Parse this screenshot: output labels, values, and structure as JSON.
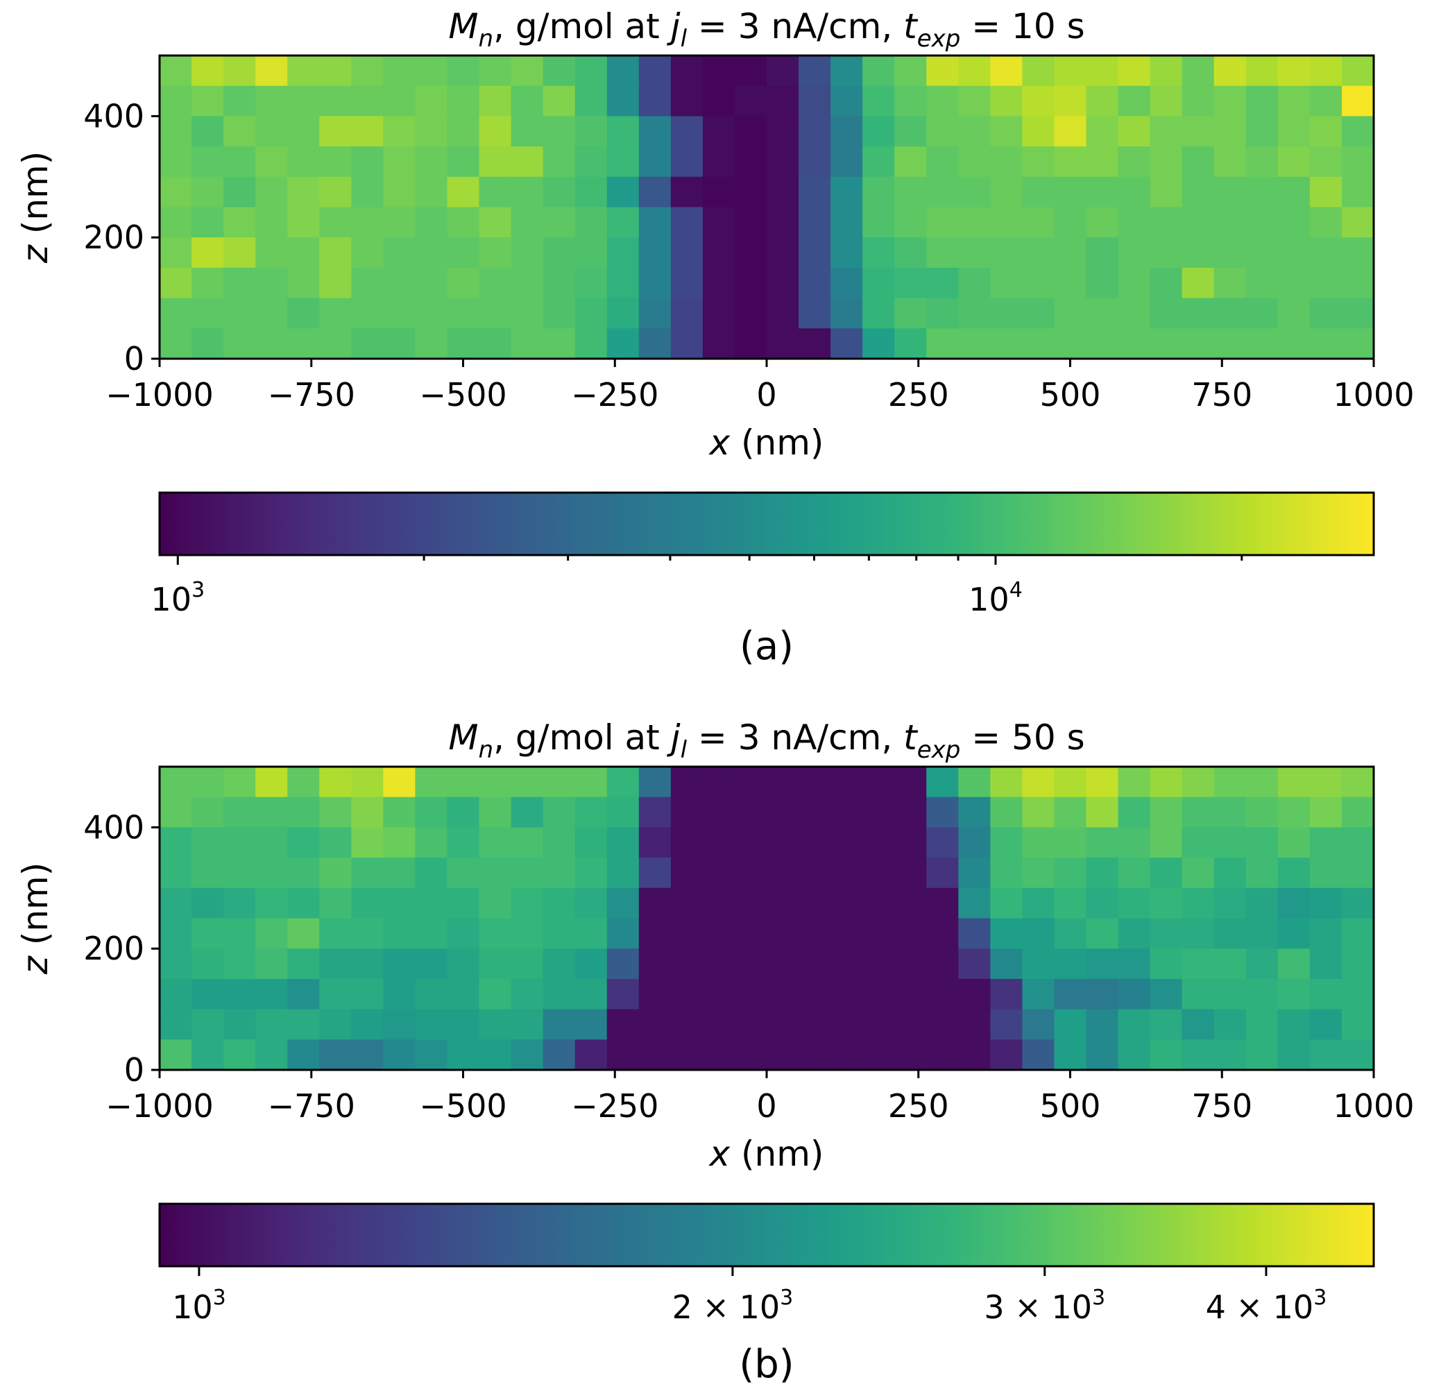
{
  "chart_data": [
    {
      "type": "heatmap",
      "title_parts": [
        "M",
        "n",
        ", g/mol at ",
        "j",
        "l",
        " = 3 nA/cm, ",
        "t",
        "exp",
        " = 10 s"
      ],
      "title": "M_n, g/mol at j_l = 3 nA/cm, t_exp = 10 s",
      "xlabel_var": "x",
      "xlabel_unit": " (nm)",
      "ylabel_var": "z",
      "ylabel_unit": " (nm)",
      "xlim": [
        -1000,
        1000
      ],
      "ylim": [
        0,
        500
      ],
      "xticks": [
        -1000,
        -750,
        -500,
        -250,
        0,
        250,
        500,
        750,
        1000
      ],
      "xtick_labels": [
        "−1000",
        "−750",
        "−500",
        "−250",
        "0",
        "250",
        "500",
        "750",
        "1000"
      ],
      "yticks": [
        0,
        200,
        400
      ],
      "ytick_labels": [
        "0",
        "200",
        "400"
      ],
      "colorbar": {
        "scale": "log",
        "vmin": 950,
        "vmax": 29000,
        "major_ticks": [
          1000,
          10000
        ],
        "major_labels": [
          [
            "10",
            "3"
          ],
          [
            "10",
            "4"
          ]
        ],
        "minor_ticks": [
          2000,
          3000,
          4000,
          5000,
          6000,
          7000,
          8000,
          9000,
          20000
        ]
      },
      "panel_label": "(a)",
      "grid_rows_top_to_bottom": [
        [
          14000,
          20000,
          18000,
          24000,
          16000,
          16000,
          14000,
          13000,
          13000,
          12000,
          13000,
          14000,
          11000,
          10000,
          5000,
          2000,
          1050,
          1000,
          1000,
          1100,
          2200,
          5000,
          11000,
          13000,
          22000,
          20000,
          26000,
          17000,
          19000,
          19000,
          21000,
          17000,
          13000,
          22000,
          19000,
          21000,
          20000,
          17000
        ],
        [
          13000,
          14000,
          12000,
          13000,
          13000,
          13000,
          13000,
          13000,
          14000,
          13000,
          16000,
          12000,
          15000,
          10000,
          5000,
          2000,
          1050,
          1000,
          1050,
          1050,
          2100,
          4600,
          10000,
          12000,
          13000,
          14000,
          17000,
          20000,
          21000,
          16000,
          13000,
          16000,
          13000,
          14000,
          12000,
          14000,
          13000,
          28000
        ],
        [
          13000,
          11000,
          14000,
          13000,
          13000,
          18000,
          18000,
          15000,
          14000,
          13000,
          18000,
          12000,
          12000,
          11000,
          9500,
          4300,
          2000,
          1050,
          1000,
          1050,
          2100,
          4000,
          9000,
          11000,
          13000,
          13000,
          14000,
          19000,
          24000,
          15000,
          17000,
          14000,
          14000,
          14000,
          12000,
          14000,
          15000,
          12000
        ],
        [
          13000,
          12000,
          12000,
          14000,
          13000,
          13000,
          12000,
          14000,
          13000,
          12000,
          17000,
          17000,
          12000,
          10500,
          9500,
          4300,
          2000,
          1050,
          1000,
          1050,
          2100,
          4000,
          10000,
          14000,
          12000,
          13000,
          13000,
          14000,
          15000,
          15000,
          13000,
          14000,
          12000,
          14000,
          13000,
          15000,
          14000,
          13000
        ],
        [
          14000,
          13000,
          11000,
          13000,
          15000,
          16000,
          12000,
          14000,
          13000,
          18000,
          12000,
          12000,
          11000,
          10000,
          6000,
          2400,
          1050,
          1000,
          1000,
          1050,
          2200,
          5000,
          11000,
          12000,
          12000,
          12000,
          13000,
          12000,
          12000,
          12000,
          12000,
          14000,
          12000,
          12000,
          12000,
          12000,
          17000,
          13000
        ],
        [
          13000,
          12000,
          14000,
          13000,
          15000,
          13000,
          13000,
          13000,
          12000,
          13000,
          15000,
          12000,
          12000,
          11000,
          9500,
          4300,
          2000,
          1050,
          1000,
          1050,
          2200,
          5000,
          11000,
          12000,
          13000,
          13000,
          13000,
          13000,
          12000,
          13000,
          12000,
          12000,
          12000,
          12000,
          12000,
          12000,
          13000,
          16000
        ],
        [
          14000,
          20000,
          18000,
          13000,
          13000,
          16000,
          13000,
          12000,
          12000,
          12000,
          13000,
          12000,
          11000,
          11000,
          8500,
          4300,
          2000,
          1050,
          1000,
          1050,
          2200,
          5000,
          9500,
          10500,
          12000,
          12000,
          12000,
          12000,
          12000,
          11000,
          12000,
          12000,
          12000,
          12000,
          12000,
          12000,
          12000,
          12000
        ],
        [
          16000,
          13000,
          12000,
          12000,
          13000,
          16000,
          12000,
          12000,
          12000,
          13000,
          12000,
          12000,
          11000,
          10500,
          8500,
          4300,
          2000,
          1050,
          1000,
          1050,
          2200,
          4300,
          9000,
          9500,
          9500,
          11000,
          12000,
          12000,
          12000,
          11000,
          12000,
          11000,
          17000,
          13000,
          12000,
          12000,
          12000,
          12000
        ],
        [
          12000,
          12000,
          12000,
          12000,
          11000,
          12000,
          12000,
          12000,
          12000,
          12000,
          12000,
          12000,
          11000,
          10000,
          8000,
          4000,
          1900,
          1050,
          1000,
          1050,
          2200,
          4000,
          9000,
          11000,
          10500,
          11000,
          11000,
          11000,
          12000,
          12000,
          12000,
          11000,
          11000,
          11000,
          11000,
          12000,
          11000,
          11000
        ],
        [
          12000,
          11000,
          12000,
          12000,
          12000,
          12000,
          11000,
          11000,
          12000,
          11000,
          11000,
          12000,
          12000,
          10000,
          6500,
          3300,
          1900,
          1050,
          1000,
          1050,
          1050,
          2200,
          6500,
          9000,
          12000,
          12000,
          12000,
          12000,
          12000,
          12000,
          12000,
          12000,
          12000,
          12000,
          12000,
          12000,
          12000,
          12000
        ]
      ]
    },
    {
      "type": "heatmap",
      "title_parts": [
        "M",
        "n",
        ", g/mol at ",
        "j",
        "l",
        " = 3 nA/cm, ",
        "t",
        "exp",
        " = 50 s"
      ],
      "title": "M_n, g/mol at j_l = 3 nA/cm, t_exp = 50 s",
      "xlabel_var": "x",
      "xlabel_unit": " (nm)",
      "ylabel_var": "z",
      "ylabel_unit": " (nm)",
      "xlim": [
        -1000,
        1000
      ],
      "ylim": [
        0,
        500
      ],
      "xticks": [
        -1000,
        -750,
        -500,
        -250,
        0,
        250,
        500,
        750,
        1000
      ],
      "xtick_labels": [
        "−1000",
        "−750",
        "−500",
        "−250",
        "0",
        "250",
        "500",
        "750",
        "1000"
      ],
      "yticks": [
        0,
        200,
        400
      ],
      "ytick_labels": [
        "0",
        "200",
        "400"
      ],
      "colorbar": {
        "scale": "log",
        "vmin": 950,
        "vmax": 4600,
        "major_ticks": [
          1000,
          2000,
          3000,
          4000
        ],
        "major_labels": [
          [
            "10",
            "3"
          ],
          [
            "2 × 10",
            "3"
          ],
          [
            "3 × 10",
            "3"
          ],
          [
            "4 × 10",
            "3"
          ]
        ],
        "minor_ticks": []
      },
      "panel_label": "(b)",
      "grid_rows_top_to_bottom": [
        [
          3100,
          3100,
          3200,
          3900,
          3100,
          3800,
          3700,
          4400,
          3100,
          3100,
          3100,
          3100,
          3100,
          3100,
          2700,
          1700,
          1000,
          1000,
          1000,
          1000,
          1000,
          1000,
          1000,
          1000,
          2300,
          3000,
          3600,
          4000,
          3800,
          4000,
          3300,
          3600,
          3400,
          3200,
          3200,
          3500,
          3500,
          3400
        ],
        [
          3100,
          3000,
          2900,
          2900,
          2900,
          3100,
          3400,
          3000,
          2800,
          2600,
          3000,
          2500,
          2800,
          2700,
          2600,
          1200,
          1000,
          1000,
          1000,
          1000,
          1000,
          1000,
          1000,
          1000,
          1500,
          2000,
          3000,
          3400,
          3100,
          3600,
          2800,
          3100,
          2900,
          2900,
          3000,
          3100,
          3300,
          3000
        ],
        [
          2700,
          2800,
          2800,
          2800,
          2700,
          2800,
          3300,
          3200,
          2900,
          2700,
          2900,
          2900,
          2800,
          2600,
          2400,
          1100,
          1000,
          1000,
          1000,
          1000,
          1000,
          1000,
          1000,
          1000,
          1300,
          1900,
          2800,
          3000,
          3000,
          2900,
          2900,
          3100,
          2800,
          2800,
          2800,
          3000,
          2800,
          2800
        ],
        [
          2700,
          2800,
          2800,
          2800,
          2800,
          3000,
          2800,
          2800,
          2600,
          2800,
          2800,
          2800,
          2800,
          2700,
          2400,
          1300,
          1000,
          1000,
          1000,
          1000,
          1000,
          1000,
          1000,
          1000,
          1200,
          2000,
          2800,
          2900,
          2800,
          2600,
          2800,
          2600,
          2900,
          2600,
          2800,
          2600,
          2800,
          2800
        ],
        [
          2500,
          2400,
          2500,
          2700,
          2600,
          2800,
          2600,
          2600,
          2600,
          2600,
          2800,
          2700,
          2600,
          2500,
          2100,
          1000,
          1000,
          1000,
          1000,
          1000,
          1000,
          1000,
          1000,
          1000,
          1000,
          2100,
          2700,
          2500,
          2700,
          2500,
          2600,
          2700,
          2600,
          2500,
          2400,
          2200,
          2300,
          2400
        ],
        [
          2500,
          2700,
          2700,
          2900,
          3100,
          2700,
          2700,
          2600,
          2600,
          2500,
          2700,
          2700,
          2600,
          2600,
          2000,
          1000,
          1000,
          1000,
          1000,
          1000,
          1000,
          1000,
          1000,
          1000,
          1000,
          1400,
          2300,
          2300,
          2500,
          2700,
          2400,
          2500,
          2500,
          2400,
          2400,
          2300,
          2400,
          2600
        ],
        [
          2500,
          2600,
          2700,
          2800,
          2600,
          2400,
          2400,
          2300,
          2300,
          2400,
          2600,
          2600,
          2400,
          2300,
          1500,
          1000,
          1000,
          1000,
          1000,
          1000,
          1000,
          1000,
          1000,
          1000,
          1000,
          1200,
          2000,
          2300,
          2300,
          2200,
          2200,
          2600,
          2700,
          2700,
          2500,
          2800,
          2400,
          2600
        ],
        [
          2400,
          2300,
          2300,
          2300,
          2100,
          2500,
          2500,
          2300,
          2400,
          2400,
          2700,
          2500,
          2400,
          2400,
          1200,
          1000,
          1000,
          1000,
          1000,
          1000,
          1000,
          1000,
          1000,
          1000,
          1000,
          1000,
          1200,
          2100,
          1800,
          1800,
          1900,
          2100,
          2600,
          2600,
          2600,
          2700,
          2600,
          2600
        ],
        [
          2400,
          2500,
          2400,
          2500,
          2500,
          2400,
          2300,
          2200,
          2300,
          2300,
          2400,
          2400,
          1900,
          1900,
          1000,
          1000,
          1000,
          1000,
          1000,
          1000,
          1000,
          1000,
          1000,
          1000,
          1000,
          1000,
          1300,
          1800,
          2300,
          2000,
          2400,
          2500,
          2200,
          2400,
          2600,
          2400,
          2300,
          2600
        ],
        [
          2900,
          2500,
          2700,
          2500,
          2000,
          1800,
          1800,
          2000,
          2100,
          2300,
          2300,
          2100,
          1600,
          1100,
          1000,
          1000,
          1000,
          1000,
          1000,
          1000,
          1000,
          1000,
          1000,
          1000,
          1000,
          1000,
          1100,
          1500,
          2300,
          2000,
          2400,
          2600,
          2500,
          2500,
          2600,
          2400,
          2500,
          2500
        ]
      ]
    }
  ]
}
